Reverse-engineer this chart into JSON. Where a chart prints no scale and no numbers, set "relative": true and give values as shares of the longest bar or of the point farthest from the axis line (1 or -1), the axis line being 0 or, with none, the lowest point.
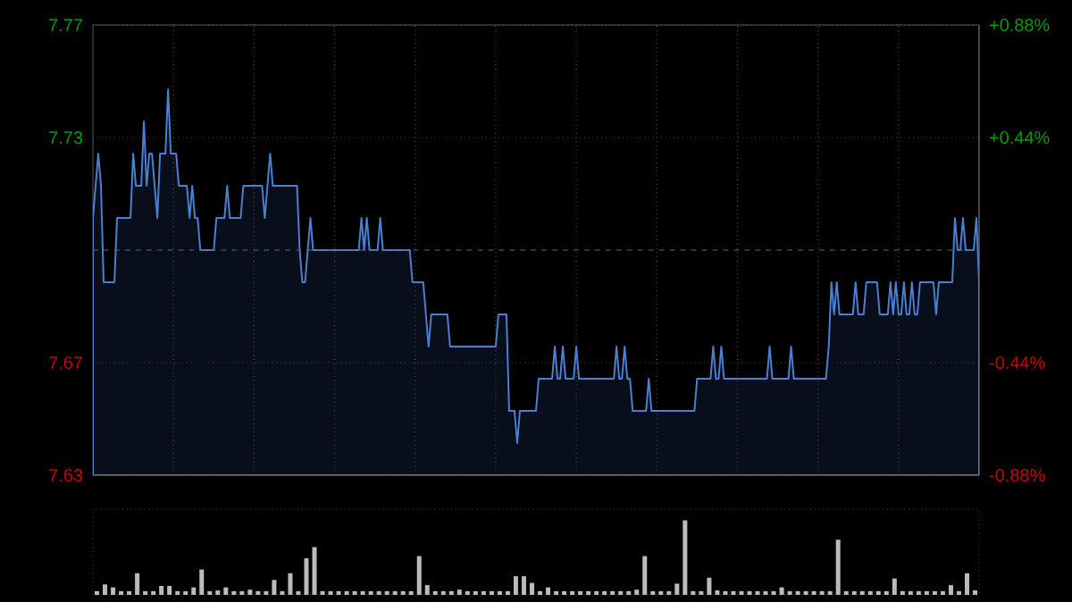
{
  "chart_data": [
    {
      "type": "area",
      "categories": [
        null,
        null,
        null,
        null,
        null,
        null,
        null,
        null,
        null,
        null,
        null,
        null,
        null,
        null,
        null,
        null,
        null,
        null,
        null,
        null,
        null,
        null,
        null,
        null,
        null,
        null,
        null,
        null,
        null,
        null,
        null,
        null,
        null,
        null,
        null,
        null,
        null,
        null,
        null,
        null,
        null,
        null,
        null,
        null,
        null,
        null,
        null,
        null,
        null,
        null,
        null,
        null,
        null,
        null,
        null,
        null,
        null,
        null,
        null,
        null,
        null,
        null,
        null,
        null,
        null,
        null,
        null,
        null,
        null,
        null,
        null,
        null,
        null,
        null,
        null,
        null,
        null,
        null,
        null,
        null,
        null,
        null,
        null,
        null,
        null,
        null,
        null,
        null,
        null,
        null,
        null,
        null,
        null,
        null,
        null,
        null,
        null,
        null,
        null,
        null,
        null,
        null,
        null,
        null,
        null,
        null,
        null,
        null,
        null,
        null,
        null,
        null,
        null,
        null,
        null,
        null,
        null,
        null,
        null,
        null,
        null,
        null,
        null,
        null,
        null,
        null,
        null,
        null,
        null,
        null,
        null,
        null,
        null,
        null,
        null,
        null,
        null,
        null,
        null,
        null,
        null,
        null,
        null,
        null,
        null,
        null,
        null,
        null,
        null,
        null,
        null,
        null,
        null,
        null,
        null,
        null,
        null,
        null,
        null,
        null,
        null,
        null,
        null,
        null,
        null,
        null,
        null,
        null,
        null,
        null,
        null,
        null,
        null,
        null,
        null,
        null,
        null,
        null,
        null,
        null,
        null,
        null,
        null,
        null,
        null,
        null,
        null,
        null,
        null,
        null,
        null,
        null,
        null,
        null,
        null,
        null,
        null,
        null,
        null,
        null,
        null,
        null,
        null,
        null,
        null,
        null,
        null,
        null,
        null,
        null,
        null,
        null,
        null,
        null,
        null,
        null,
        null,
        null,
        null,
        null,
        null,
        null,
        null,
        null,
        null,
        null,
        null,
        null,
        null,
        null,
        null,
        null,
        null,
        null,
        null,
        null,
        null,
        null,
        null,
        null,
        null,
        null,
        null,
        null,
        null,
        null,
        null,
        null,
        null,
        null,
        null,
        null,
        null,
        null,
        null,
        null,
        null,
        null,
        null,
        null,
        null,
        null,
        null,
        null,
        null,
        null,
        null,
        null,
        null,
        null,
        null,
        null,
        null,
        null,
        null,
        null,
        null,
        null,
        null,
        null,
        null,
        null,
        null,
        null,
        null,
        null,
        null,
        null,
        null,
        null,
        null,
        null,
        null,
        null,
        null,
        null,
        null,
        null,
        null,
        null,
        null,
        null,
        null,
        null,
        null,
        null,
        null,
        null,
        null,
        null,
        null,
        null,
        null,
        null,
        null,
        null,
        null,
        null,
        null,
        null,
        null,
        null,
        null,
        null,
        null,
        null,
        null,
        null,
        null,
        null,
        null
      ],
      "series": [
        {
          "color": "#4a7fd4",
          "values": [
            7.71,
            7.72,
            7.73,
            7.72,
            7.69,
            7.69,
            7.69,
            7.69,
            7.69,
            7.71,
            7.71,
            7.71,
            7.71,
            7.71,
            7.71,
            7.73,
            7.72,
            7.72,
            7.72,
            7.74,
            7.72,
            7.73,
            7.73,
            7.72,
            7.71,
            7.73,
            7.73,
            7.73,
            7.75,
            7.73,
            7.73,
            7.73,
            7.72,
            7.72,
            7.72,
            7.72,
            7.71,
            7.72,
            7.71,
            7.71,
            7.7,
            7.7,
            7.7,
            7.7,
            7.7,
            7.7,
            7.71,
            7.71,
            7.71,
            7.71,
            7.72,
            7.71,
            7.71,
            7.71,
            7.71,
            7.71,
            7.72,
            7.72,
            7.72,
            7.72,
            7.72,
            7.72,
            7.72,
            7.72,
            7.71,
            7.72,
            7.73,
            7.72,
            7.72,
            7.72,
            7.72,
            7.72,
            7.72,
            7.72,
            7.72,
            7.72,
            7.72,
            7.7,
            7.69,
            7.69,
            7.7,
            7.71,
            7.7,
            7.7,
            7.7,
            7.7,
            7.7,
            7.7,
            7.7,
            7.7,
            7.7,
            7.7,
            7.7,
            7.7,
            7.7,
            7.7,
            7.7,
            7.7,
            7.7,
            7.7,
            7.71,
            7.7,
            7.71,
            7.7,
            7.7,
            7.7,
            7.7,
            7.71,
            7.7,
            7.7,
            7.7,
            7.7,
            7.7,
            7.7,
            7.7,
            7.7,
            7.7,
            7.7,
            7.7,
            7.69,
            7.69,
            7.69,
            7.69,
            7.69,
            7.68,
            7.67,
            7.68,
            7.68,
            7.68,
            7.68,
            7.68,
            7.68,
            7.68,
            7.67,
            7.67,
            7.67,
            7.67,
            7.67,
            7.67,
            7.67,
            7.67,
            7.67,
            7.67,
            7.67,
            7.67,
            7.67,
            7.67,
            7.67,
            7.67,
            7.67,
            7.67,
            7.68,
            7.68,
            7.68,
            7.68,
            7.65,
            7.65,
            7.65,
            7.64,
            7.65,
            7.65,
            7.65,
            7.65,
            7.65,
            7.65,
            7.65,
            7.66,
            7.66,
            7.66,
            7.66,
            7.66,
            7.66,
            7.67,
            7.66,
            7.66,
            7.67,
            7.66,
            7.66,
            7.66,
            7.66,
            7.67,
            7.66,
            7.66,
            7.66,
            7.66,
            7.66,
            7.66,
            7.66,
            7.66,
            7.66,
            7.66,
            7.66,
            7.66,
            7.66,
            7.66,
            7.67,
            7.66,
            7.66,
            7.67,
            7.66,
            7.66,
            7.65,
            7.65,
            7.65,
            7.65,
            7.65,
            7.65,
            7.66,
            7.65,
            7.65,
            7.65,
            7.65,
            7.65,
            7.65,
            7.65,
            7.65,
            7.65,
            7.65,
            7.65,
            7.65,
            7.65,
            7.65,
            7.65,
            7.65,
            7.65,
            7.66,
            7.66,
            7.66,
            7.66,
            7.66,
            7.66,
            7.67,
            7.66,
            7.66,
            7.67,
            7.66,
            7.66,
            7.66,
            7.66,
            7.66,
            7.66,
            7.66,
            7.66,
            7.66,
            7.66,
            7.66,
            7.66,
            7.66,
            7.66,
            7.66,
            7.66,
            7.66,
            7.67,
            7.66,
            7.66,
            7.66,
            7.66,
            7.66,
            7.66,
            7.66,
            7.67,
            7.66,
            7.66,
            7.66,
            7.66,
            7.66,
            7.66,
            7.66,
            7.66,
            7.66,
            7.66,
            7.66,
            7.66,
            7.66,
            7.67,
            7.69,
            7.68,
            7.69,
            7.68,
            7.68,
            7.68,
            7.68,
            7.68,
            7.68,
            7.69,
            7.68,
            7.68,
            7.68,
            7.69,
            7.69,
            7.69,
            7.69,
            7.69,
            7.68,
            7.68,
            7.68,
            7.68,
            7.69,
            7.68,
            7.69,
            7.68,
            7.68,
            7.69,
            7.68,
            7.68,
            7.69,
            7.68,
            7.68,
            7.69,
            7.69,
            7.69,
            7.69,
            7.69,
            7.69,
            7.68,
            7.69,
            7.69,
            7.69,
            7.69,
            7.69,
            7.69,
            7.71,
            7.7,
            7.7,
            7.71,
            7.7,
            7.7,
            7.7,
            7.7,
            7.71,
            7.69
          ]
        }
      ],
      "ylim": [
        7.63,
        7.77
      ],
      "yticks": [
        7.63,
        {
          "value": 7.665,
          "label": "7.67"
        },
        {
          "value": 7.735,
          "label": "7.73"
        },
        7.77
      ],
      "y2lim": [
        -0.88,
        0.88
      ],
      "y2ticks": [
        {
          "value": -0.88,
          "label": "-0.88%"
        },
        {
          "value": -0.44,
          "label": "-0.44%"
        },
        {
          "value": 0.44,
          "label": "+0.44%"
        },
        {
          "value": 0.88,
          "label": "+0.88%"
        }
      ],
      "ref_lines": [
        {
          "axis": "y",
          "value": 7.7,
          "color": "#666666",
          "line_style": "dashed"
        }
      ],
      "grid": true,
      "tick_labels": "y"
    },
    {
      "type": "bar",
      "relative": true,
      "color": "#bbbbbb",
      "categories": [
        null,
        null,
        null,
        null,
        null,
        null,
        null,
        null,
        null,
        null,
        null,
        null,
        null,
        null,
        null,
        null,
        null,
        null,
        null,
        null,
        null,
        null,
        null,
        null,
        null,
        null,
        null,
        null,
        null,
        null,
        null,
        null,
        null,
        null,
        null,
        null,
        null,
        null,
        null,
        null,
        null,
        null,
        null,
        null,
        null,
        null,
        null,
        null,
        null,
        null,
        null,
        null,
        null,
        null,
        null,
        null,
        null,
        null,
        null,
        null,
        null,
        null,
        null,
        null,
        null,
        null,
        null,
        null,
        null,
        null,
        null,
        null,
        null,
        null,
        null,
        null,
        null,
        null,
        null,
        null,
        null,
        null,
        null,
        null,
        null,
        null,
        null,
        null,
        null,
        null,
        null,
        null,
        null,
        null,
        null,
        null,
        null,
        null,
        null,
        null,
        null,
        null,
        null,
        null,
        null,
        null,
        null,
        null,
        null,
        null
      ],
      "values": [
        0.05,
        0.14,
        0.1,
        0.05,
        0.05,
        0.29,
        0.05,
        0.05,
        0.12,
        0.12,
        0.05,
        0.05,
        0.1,
        0.34,
        0.05,
        0.06,
        0.1,
        0.05,
        0.05,
        0.07,
        0.05,
        0.05,
        0.2,
        0.05,
        0.29,
        0.05,
        0.49,
        0.64,
        0.05,
        0.05,
        0.05,
        0.05,
        0.05,
        0.05,
        0.05,
        0.05,
        0.05,
        0.05,
        0.05,
        0.05,
        0.52,
        0.13,
        0.05,
        0.05,
        0.05,
        0.07,
        0.05,
        0.05,
        0.05,
        0.05,
        0.05,
        0.05,
        0.25,
        0.25,
        0.16,
        0.05,
        0.1,
        0.05,
        0.05,
        0.05,
        0.05,
        0.05,
        0.05,
        0.05,
        0.05,
        0.05,
        0.05,
        0.07,
        0.52,
        0.05,
        0.05,
        0.05,
        0.15,
        1,
        0.05,
        0.05,
        0.23,
        0.06,
        0.05,
        0.05,
        0.05,
        0.05,
        0.05,
        0.05,
        0.05,
        0.1,
        0.05,
        0.05,
        0.05,
        0.05,
        0.05,
        0.05,
        0.74,
        0.05,
        0.05,
        0.05,
        0.05,
        0.05,
        0.05,
        0.22,
        0.05,
        0.05,
        0.05,
        0.05,
        0.05,
        0.05,
        0.13,
        0.05,
        0.29,
        0.06
      ]
    }
  ]
}
